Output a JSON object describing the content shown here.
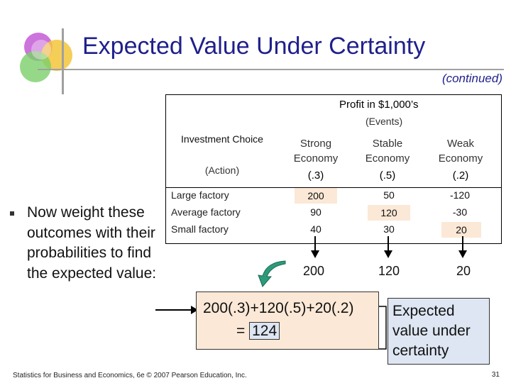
{
  "title": "Expected Value Under Certainty",
  "subtitle": "(continued)",
  "table": {
    "profit_header": "Profit in $1,000’s",
    "events_header": "(Events)",
    "investment_choice": "Investment Choice",
    "action_label": "(Action)",
    "columns": [
      {
        "name": "Strong Economy",
        "prob": "(.3)"
      },
      {
        "name": "Stable Economy",
        "prob": "(.5)"
      },
      {
        "name": "Weak Economy",
        "prob": "(.2)"
      }
    ],
    "rows": [
      {
        "action": "Large factory",
        "values": [
          "200",
          "50",
          "-120"
        ]
      },
      {
        "action": "Average factory",
        "values": [
          "90",
          "120",
          "-30"
        ]
      },
      {
        "action": "Small factory",
        "values": [
          "40",
          "30",
          "20"
        ]
      }
    ]
  },
  "bullet_text": "Now weight these outcomes with their probabilities to find the expected value:",
  "best_values": [
    "200",
    "120",
    "20"
  ],
  "calc_line1": "200(.3)+120(.5)+20(.2)",
  "calc_equals": "= ",
  "calc_result": "124",
  "evuc_label": "Expected value under certainty",
  "footer": "Statistics for Business and Economics, 6e © 2007 Pearson Education, Inc.",
  "page_number": "31",
  "colors": {
    "title": "#1f1f8c",
    "highlight": "#fbe8d6",
    "blue_box": "#dde6f2",
    "green_arrow": "#2e9a7a"
  }
}
